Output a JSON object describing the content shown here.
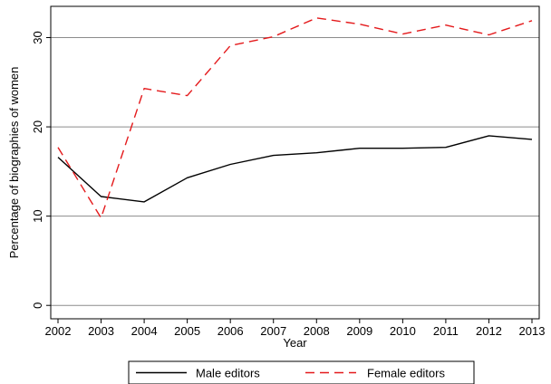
{
  "chart_data": {
    "type": "line",
    "title": "",
    "xlabel": "Year",
    "ylabel": "Percentage of biographies of women",
    "x": [
      2002,
      2003,
      2004,
      2005,
      2006,
      2007,
      2008,
      2009,
      2010,
      2011,
      2012,
      2013
    ],
    "xlim": [
      2002,
      2013
    ],
    "ylim": [
      -1.5,
      33.5
    ],
    "yticks": [
      0,
      10,
      20,
      30
    ],
    "grid": true,
    "legend_position": "bottom",
    "series": [
      {
        "name": "Male editors",
        "color": "#000000",
        "style": "solid",
        "values": [
          16.6,
          12.2,
          11.6,
          14.3,
          15.8,
          16.8,
          17.1,
          17.6,
          17.6,
          17.7,
          19.0,
          18.6
        ]
      },
      {
        "name": "Female editors",
        "color": "#e41a1c",
        "style": "dashed",
        "values": [
          17.7,
          9.8,
          24.3,
          23.5,
          29.1,
          30.1,
          32.2,
          31.5,
          30.4,
          31.4,
          30.3,
          31.9
        ]
      }
    ]
  }
}
